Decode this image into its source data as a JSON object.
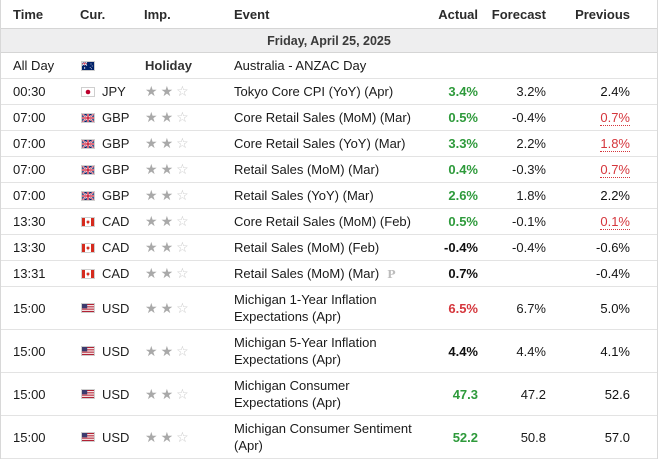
{
  "columns": {
    "time": "Time",
    "cur": "Cur.",
    "imp": "Imp.",
    "event": "Event",
    "actual": "Actual",
    "forecast": "Forecast",
    "previous": "Previous"
  },
  "date_label": "Friday, April 25, 2025",
  "holiday": {
    "time": "All Day",
    "flag": "AU",
    "imp": "Holiday",
    "event": "Australia - ANZAC Day"
  },
  "rows": [
    {
      "time": "00:30",
      "flag": "JP",
      "cur": "JPY",
      "stars": 2,
      "event": "Tokyo Core CPI (YoY) (Apr)",
      "actual": "3.4%",
      "actual_color": "green",
      "forecast": "3.2%",
      "previous": "2.4%",
      "previous_color": "black",
      "prelim": ""
    },
    {
      "time": "07:00",
      "flag": "GB",
      "cur": "GBP",
      "stars": 2,
      "event": "Core Retail Sales (MoM) (Mar)",
      "actual": "0.5%",
      "actual_color": "green",
      "forecast": "-0.4%",
      "previous": "0.7%",
      "previous_color": "red",
      "prelim": ""
    },
    {
      "time": "07:00",
      "flag": "GB",
      "cur": "GBP",
      "stars": 2,
      "event": "Core Retail Sales (YoY) (Mar)",
      "actual": "3.3%",
      "actual_color": "green",
      "forecast": "2.2%",
      "previous": "1.8%",
      "previous_color": "red",
      "prelim": ""
    },
    {
      "time": "07:00",
      "flag": "GB",
      "cur": "GBP",
      "stars": 2,
      "event": "Retail Sales (MoM) (Mar)",
      "actual": "0.4%",
      "actual_color": "green",
      "forecast": "-0.3%",
      "previous": "0.7%",
      "previous_color": "red",
      "prelim": ""
    },
    {
      "time": "07:00",
      "flag": "GB",
      "cur": "GBP",
      "stars": 2,
      "event": "Retail Sales (YoY) (Mar)",
      "actual": "2.6%",
      "actual_color": "green",
      "forecast": "1.8%",
      "previous": "2.2%",
      "previous_color": "black",
      "prelim": ""
    },
    {
      "time": "13:30",
      "flag": "CA",
      "cur": "CAD",
      "stars": 2,
      "event": "Core Retail Sales (MoM) (Feb)",
      "actual": "0.5%",
      "actual_color": "green",
      "forecast": "-0.1%",
      "previous": "0.1%",
      "previous_color": "red",
      "prelim": ""
    },
    {
      "time": "13:30",
      "flag": "CA",
      "cur": "CAD",
      "stars": 2,
      "event": "Retail Sales (MoM) (Feb)",
      "actual": "-0.4%",
      "actual_color": "black",
      "forecast": "-0.4%",
      "previous": "-0.6%",
      "previous_color": "black",
      "prelim": ""
    },
    {
      "time": "13:31",
      "flag": "CA",
      "cur": "CAD",
      "stars": 2,
      "event": "Retail Sales (MoM) (Mar)",
      "actual": "0.7%",
      "actual_color": "black",
      "forecast": "",
      "previous": "-0.4%",
      "previous_color": "black",
      "prelim": "P"
    },
    {
      "time": "15:00",
      "flag": "US",
      "cur": "USD",
      "stars": 2,
      "event": "Michigan 1-Year Inflation Expectations (Apr)",
      "actual": "6.5%",
      "actual_color": "red",
      "forecast": "6.7%",
      "previous": "5.0%",
      "previous_color": "black",
      "prelim": ""
    },
    {
      "time": "15:00",
      "flag": "US",
      "cur": "USD",
      "stars": 2,
      "event": "Michigan 5-Year Inflation Expectations (Apr)",
      "actual": "4.4%",
      "actual_color": "black",
      "forecast": "4.4%",
      "previous": "4.1%",
      "previous_color": "black",
      "prelim": ""
    },
    {
      "time": "15:00",
      "flag": "US",
      "cur": "USD",
      "stars": 2,
      "event": "Michigan Consumer Expectations (Apr)",
      "actual": "47.3",
      "actual_color": "green",
      "forecast": "47.2",
      "previous": "52.6",
      "previous_color": "black",
      "prelim": ""
    },
    {
      "time": "15:00",
      "flag": "US",
      "cur": "USD",
      "stars": 2,
      "event": "Michigan Consumer Sentiment (Apr)",
      "actual": "52.2",
      "actual_color": "green",
      "forecast": "50.8",
      "previous": "57.0",
      "previous_color": "black",
      "prelim": ""
    }
  ],
  "colors": {
    "green": "#2e9a3b",
    "red": "#d5363c",
    "black": "#111111",
    "date_bg": "#eeeeef"
  },
  "icons": {
    "star": "star-icon",
    "star_empty": "star-outline-icon",
    "prelim": "preliminary-icon"
  }
}
